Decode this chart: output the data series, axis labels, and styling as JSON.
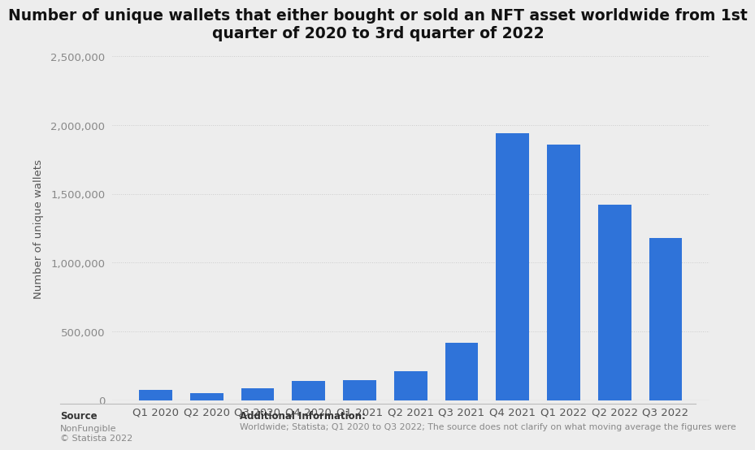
{
  "title": "Number of unique wallets that either bought or sold an NFT asset worldwide from 1st\nquarter of 2020 to 3rd quarter of 2022",
  "xlabel": "",
  "ylabel": "Number of unique wallets",
  "categories": [
    "Q1 2020",
    "Q2 2020",
    "Q3 2020",
    "Q4 2020",
    "Q1 2021",
    "Q2 2021",
    "Q3 2021",
    "Q4 2021",
    "Q1 2022",
    "Q2 2022",
    "Q3 2022"
  ],
  "values": [
    73000,
    54000,
    87000,
    140000,
    147000,
    210000,
    420000,
    1940000,
    1860000,
    1420000,
    1180000
  ],
  "bar_color": "#2f73d9",
  "ylim": [
    0,
    2500000
  ],
  "yticks": [
    0,
    500000,
    1000000,
    1500000,
    2000000,
    2500000
  ],
  "background_color": "#ededed",
  "plot_background": "#ededed",
  "title_fontsize": 13.5,
  "axis_label_fontsize": 9.5,
  "tick_fontsize": 9.5,
  "source_label": "Source",
  "source_text": "NonFungible\n© Statista 2022",
  "additional_info_title": "Additional Information:",
  "additional_info_text": "Worldwide; Statista; Q1 2020 to Q3 2022; The source does not clarify on what moving average the figures were"
}
